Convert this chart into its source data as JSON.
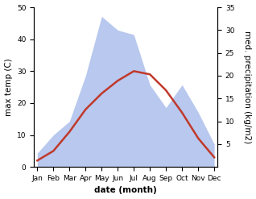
{
  "months": [
    "Jan",
    "Feb",
    "Mar",
    "Apr",
    "May",
    "Jun",
    "Jul",
    "Aug",
    "Sep",
    "Oct",
    "Nov",
    "Dec"
  ],
  "temperature": [
    2,
    5,
    11,
    18,
    23,
    27,
    30,
    29,
    24,
    17,
    9,
    3
  ],
  "precipitation": [
    3,
    7,
    10,
    20,
    33,
    30,
    29,
    18,
    13,
    18,
    12,
    5
  ],
  "temp_color": "#c0392b",
  "precip_color": "#b8c8ee",
  "temp_ylim": [
    0,
    50
  ],
  "precip_ylim": [
    0,
    35
  ],
  "temp_yticks": [
    0,
    10,
    20,
    30,
    40,
    50
  ],
  "precip_yticks": [
    5,
    10,
    15,
    20,
    25,
    30,
    35
  ],
  "xlabel": "date (month)",
  "ylabel_left": "max temp (C)",
  "ylabel_right": "med. precipitation (kg/m2)",
  "axis_fontsize": 7.5,
  "tick_fontsize": 6.5,
  "linewidth": 1.8
}
